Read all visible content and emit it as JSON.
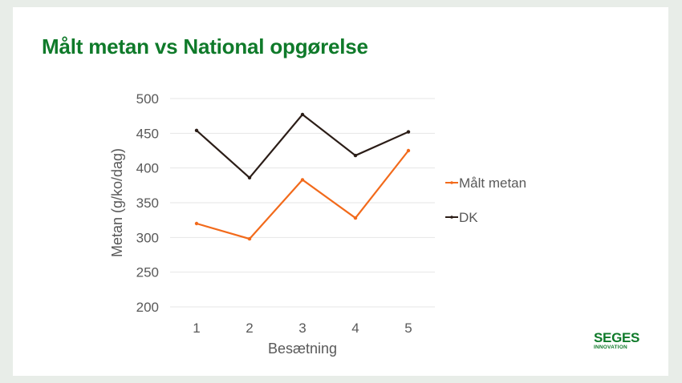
{
  "slide": {
    "title": "Målt metan vs National opgørelse",
    "logo": {
      "name": "SEGES",
      "subtitle": "INNOVATION"
    }
  },
  "colors": {
    "title": "#0f7a2a",
    "background": "#e8ede8",
    "series_malt": "#f26a1b",
    "series_dk": "#2b1d17",
    "grid": "#e6e6e6",
    "axis_text": "#595959"
  },
  "chart_data": {
    "type": "line",
    "title": "",
    "xlabel": "Besætning",
    "ylabel": "Metan (g/ko/dag)",
    "categories": [
      "1",
      "2",
      "3",
      "4",
      "5"
    ],
    "ylim": [
      200,
      500
    ],
    "yticks": [
      200,
      250,
      300,
      350,
      400,
      450,
      500
    ],
    "grid": true,
    "legend_position": "right",
    "series": [
      {
        "name": "Målt metan",
        "color": "#f26a1b",
        "values": [
          320,
          298,
          383,
          328,
          425
        ]
      },
      {
        "name": "DK",
        "color": "#2b1d17",
        "values": [
          454,
          386,
          477,
          418,
          452
        ]
      }
    ]
  }
}
